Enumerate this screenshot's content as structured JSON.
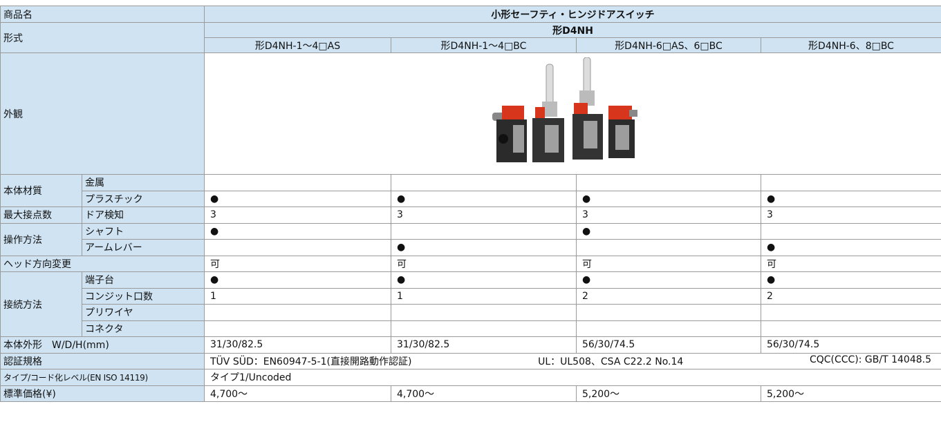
{
  "header": {
    "label": "商品名",
    "product": "小形セーフティ・ヒンジドアスイッチ"
  },
  "model": {
    "label": "形式",
    "series": "形D4NH",
    "variants": [
      "形D4NH-1〜4□AS",
      "形D4NH-1〜4□BC",
      "形D4NH-6□AS、6□BC",
      "形D4NH-6、8□BC"
    ]
  },
  "appearance": {
    "label": "外観"
  },
  "sections": [
    {
      "label": "本体材質",
      "rows": [
        {
          "label": "金属",
          "cells": [
            null,
            null,
            null,
            null
          ]
        },
        {
          "label": "プラスチック",
          "cells": [
            "●",
            "●",
            "●",
            "●"
          ]
        }
      ]
    },
    {
      "label": "最大接点数",
      "rows": [
        {
          "label": "ドア検知",
          "cells": [
            "3",
            "3",
            "3",
            "3"
          ]
        }
      ]
    },
    {
      "label": "操作方法",
      "rows": [
        {
          "label": "シャフト",
          "cells": [
            "●",
            null,
            "●",
            null
          ]
        },
        {
          "label": "アームレバー",
          "cells": [
            null,
            "●",
            null,
            "●"
          ]
        }
      ]
    },
    {
      "label": "ヘッド方向変更",
      "cells": [
        "可",
        "可",
        "可",
        "可"
      ]
    },
    {
      "label": "接続方法",
      "rows": [
        {
          "label": "端子台",
          "cells": [
            "●",
            "●",
            "●",
            "●"
          ]
        },
        {
          "label": "コンジット口数",
          "cells": [
            "1",
            "1",
            "2",
            "2"
          ]
        },
        {
          "label": "プリワイヤ",
          "cells": [
            null,
            null,
            null,
            null
          ]
        },
        {
          "label": "コネクタ",
          "cells": [
            null,
            null,
            null,
            null
          ]
        }
      ]
    },
    {
      "label": "本体外形　W/D/H(mm)",
      "cells": [
        "31/30/82.5",
        "31/30/82.5",
        "56/30/74.5",
        "56/30/74.5"
      ]
    },
    {
      "label": "認証規格",
      "text": [
        "TÜV SÜD：EN60947-5-1(直接開路動作認証)",
        "UL：UL508、CSA C22.2 No.14",
        "CQC(CCC): GB/T 14048.5"
      ]
    },
    {
      "label": "タイプ/コード化レベル(EN ISO 14119)",
      "text": [
        "タイプ1/Uncoded"
      ]
    },
    {
      "label": "標準価格(¥)",
      "cells": [
        "4,700〜",
        "4,700〜",
        "5,200〜",
        "5,200〜"
      ]
    }
  ]
}
